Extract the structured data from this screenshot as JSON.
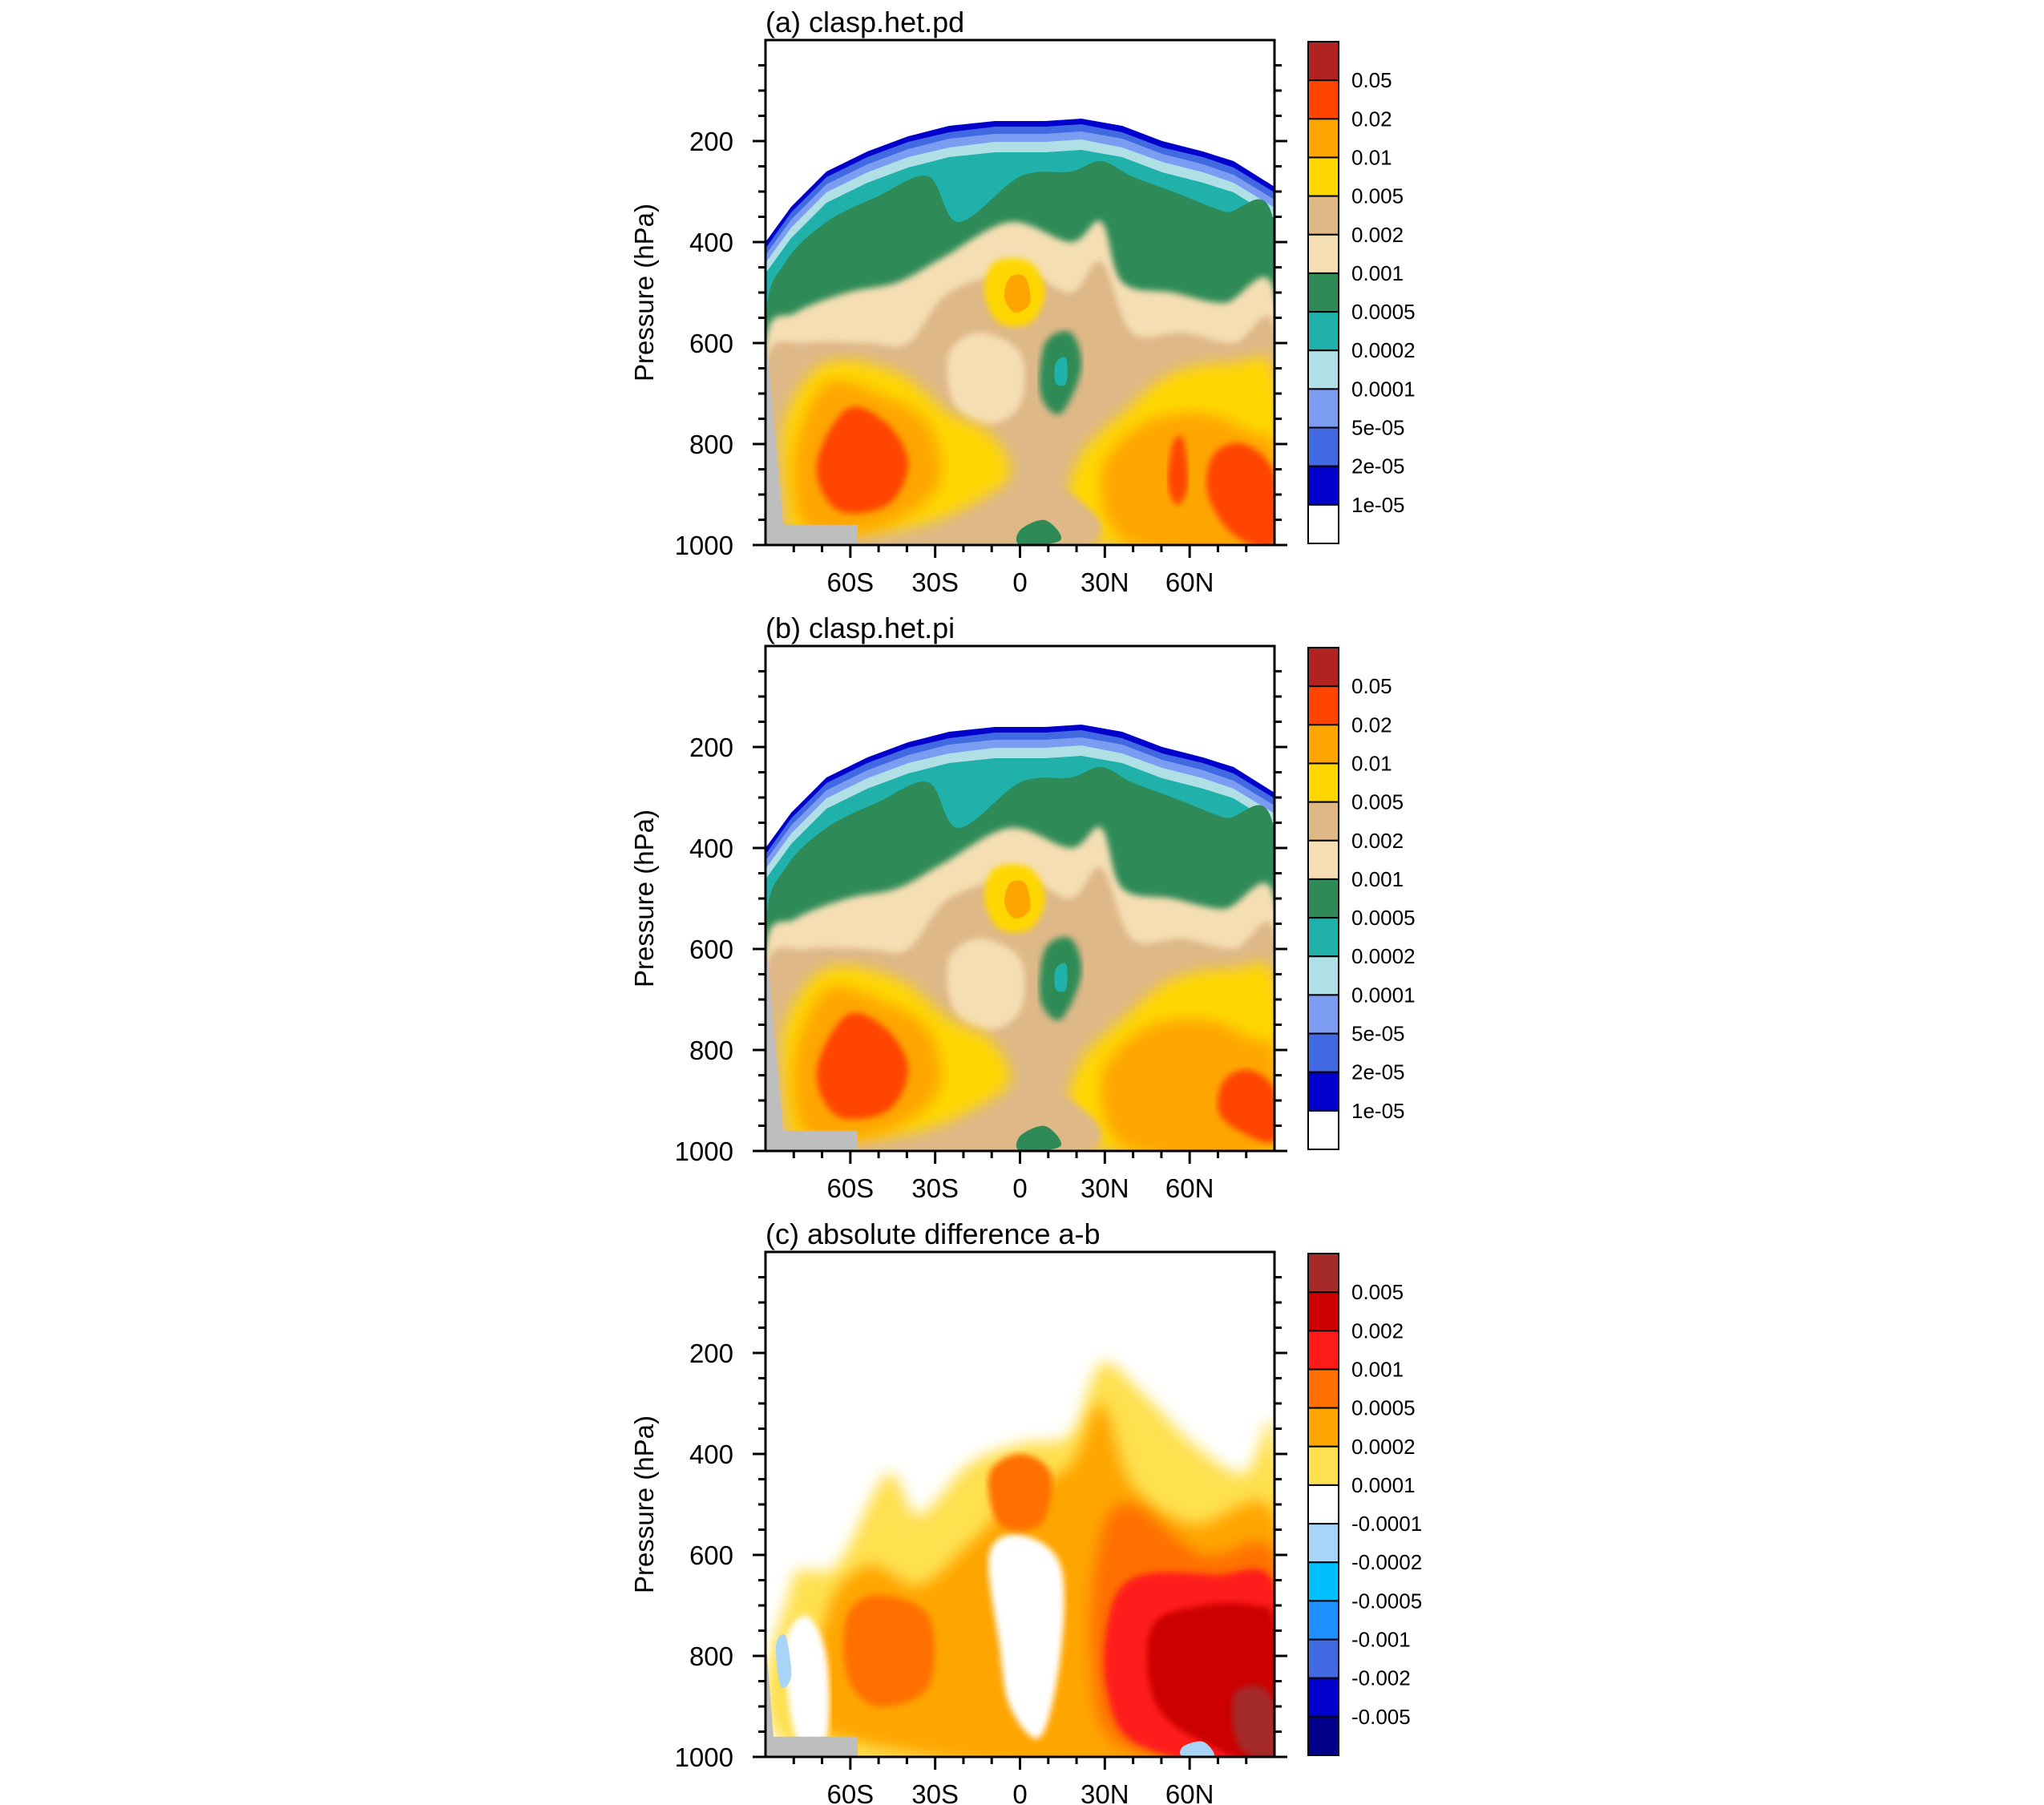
{
  "chart_data": [
    {
      "type": "contour",
      "title": "(a) clasp.het.pd",
      "ylabel": "Pressure (hPa)",
      "xlabel": "",
      "x_range": [
        -90,
        90
      ],
      "y_range": [
        1000,
        0
      ],
      "x_ticks": [
        {
          "value": -60,
          "label": "60S"
        },
        {
          "value": -30,
          "label": "30S"
        },
        {
          "value": 0,
          "label": "0"
        },
        {
          "value": 30,
          "label": "30N"
        },
        {
          "value": 60,
          "label": "60N"
        }
      ],
      "y_ticks": [
        {
          "value": 200,
          "label": "200"
        },
        {
          "value": 400,
          "label": "400"
        },
        {
          "value": 600,
          "label": "600"
        },
        {
          "value": 800,
          "label": "800"
        },
        {
          "value": 1000,
          "label": "1000"
        }
      ],
      "colorbar": {
        "levels": [
          "0.05",
          "0.02",
          "0.01",
          "0.005",
          "0.002",
          "0.001",
          "0.0005",
          "0.0002",
          "0.0001",
          "5e-05",
          "2e-05",
          "1e-05"
        ],
        "colors": [
          "#b22222",
          "#ff4500",
          "#ffa500",
          "#ffd700",
          "#deb887",
          "#f5deb3",
          "#2e8b57",
          "#20b2aa",
          "#b0e0e6",
          "#7b9cf0",
          "#4169e1",
          "#0000cd",
          "#ffffff"
        ]
      }
    },
    {
      "type": "contour",
      "title": "(b) clasp.het.pi",
      "ylabel": "Pressure (hPa)",
      "xlabel": "",
      "x_range": [
        -90,
        90
      ],
      "y_range": [
        1000,
        0
      ],
      "x_ticks": [
        {
          "value": -60,
          "label": "60S"
        },
        {
          "value": -30,
          "label": "30S"
        },
        {
          "value": 0,
          "label": "0"
        },
        {
          "value": 30,
          "label": "30N"
        },
        {
          "value": 60,
          "label": "60N"
        }
      ],
      "y_ticks": [
        {
          "value": 200,
          "label": "200"
        },
        {
          "value": 400,
          "label": "400"
        },
        {
          "value": 600,
          "label": "600"
        },
        {
          "value": 800,
          "label": "800"
        },
        {
          "value": 1000,
          "label": "1000"
        }
      ],
      "colorbar": {
        "levels": [
          "0.05",
          "0.02",
          "0.01",
          "0.005",
          "0.002",
          "0.001",
          "0.0005",
          "0.0002",
          "0.0001",
          "5e-05",
          "2e-05",
          "1e-05"
        ],
        "colors": [
          "#b22222",
          "#ff4500",
          "#ffa500",
          "#ffd700",
          "#deb887",
          "#f5deb3",
          "#2e8b57",
          "#20b2aa",
          "#b0e0e6",
          "#7b9cf0",
          "#4169e1",
          "#0000cd",
          "#ffffff"
        ]
      }
    },
    {
      "type": "contour",
      "title": "(c) absolute difference a-b",
      "ylabel": "Pressure (hPa)",
      "xlabel": "",
      "x_range": [
        -90,
        90
      ],
      "y_range": [
        1000,
        0
      ],
      "x_ticks": [
        {
          "value": -60,
          "label": "60S"
        },
        {
          "value": -30,
          "label": "30S"
        },
        {
          "value": 0,
          "label": "0"
        },
        {
          "value": 30,
          "label": "30N"
        },
        {
          "value": 60,
          "label": "60N"
        }
      ],
      "y_ticks": [
        {
          "value": 200,
          "label": "200"
        },
        {
          "value": 400,
          "label": "400"
        },
        {
          "value": 600,
          "label": "600"
        },
        {
          "value": 800,
          "label": "800"
        },
        {
          "value": 1000,
          "label": "1000"
        }
      ],
      "colorbar": {
        "levels": [
          "0.005",
          "0.002",
          "0.001",
          "0.0005",
          "0.0002",
          "0.0001",
          "-0.0001",
          "-0.0002",
          "-0.0005",
          "-0.001",
          "-0.002",
          "-0.005"
        ],
        "colors": [
          "#a52a2a",
          "#cc0000",
          "#ff1a1a",
          "#ff7000",
          "#ffa500",
          "#ffe050",
          "#ffffff",
          "#a8d4f8",
          "#00bfff",
          "#1e90ff",
          "#4169e1",
          "#0000cd",
          "#00008b"
        ]
      }
    }
  ]
}
